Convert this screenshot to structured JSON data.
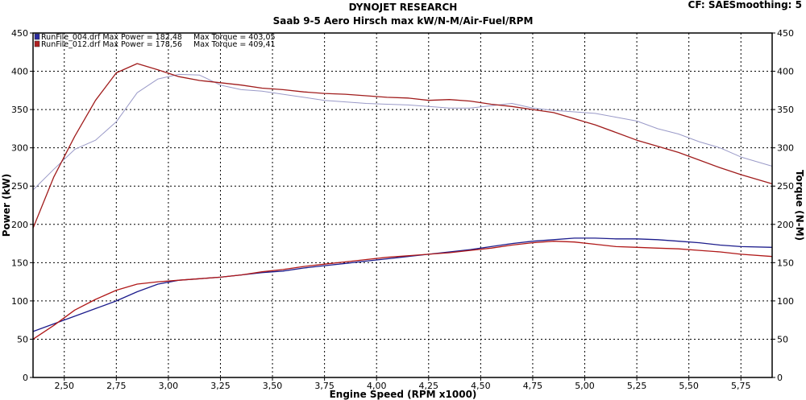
{
  "header": {
    "title": "DYNOJET RESEARCH",
    "subtitle": "Saab 9-5 Aero Hirsch max kW/N-M/Air-Fuel/RPM",
    "correction": "CF: SAE",
    "smoothing": "Smoothing: 5"
  },
  "chart_data": {
    "type": "line",
    "xlabel": "Engine Speed (RPM x1000)",
    "ylabel_left": "Power (kW)",
    "ylabel_right": "Torque (N-M)",
    "xlim": [
      2.35,
      5.9
    ],
    "ylim": [
      0,
      450
    ],
    "x_ticks": [
      "2,50",
      "2,75",
      "3,00",
      "3,25",
      "3,50",
      "3,75",
      "4,00",
      "4,25",
      "4,50",
      "4,75",
      "5,00",
      "5,25",
      "5,50",
      "5,75"
    ],
    "x_tick_values": [
      2.5,
      2.75,
      3.0,
      3.25,
      3.5,
      3.75,
      4.0,
      4.25,
      4.5,
      4.75,
      5.0,
      5.25,
      5.5,
      5.75
    ],
    "left_ticks": [
      "0",
      "50",
      "100",
      "150",
      "200",
      "250",
      "300",
      "350",
      "400",
      "450"
    ],
    "right_ticks": [
      "0",
      "50",
      "100",
      "150",
      "200",
      "250",
      "300",
      "350",
      "400",
      "450"
    ],
    "tick_values": [
      0,
      50,
      100,
      150,
      200,
      250,
      300,
      350,
      400,
      450
    ],
    "grid": true,
    "legend": [
      {
        "label": "RunFile_004.drf Max Power = 182,48",
        "detail": "Max Torque = 403,05",
        "color": "#2a2aa0"
      },
      {
        "label": "RunFile_012.drf Max Power = 178,56",
        "detail": "Max Torque = 409,41",
        "color": "#b02020"
      }
    ],
    "series": [
      {
        "name": "RunFile_004.drf",
        "kind": "power",
        "color": "#1c1c8c",
        "x": [
          2.35,
          2.45,
          2.55,
          2.65,
          2.75,
          2.85,
          2.95,
          3.05,
          3.15,
          3.25,
          3.35,
          3.45,
          3.55,
          3.65,
          3.75,
          3.85,
          3.95,
          4.05,
          4.15,
          4.25,
          4.35,
          4.45,
          4.55,
          4.65,
          4.75,
          4.85,
          4.95,
          5.05,
          5.15,
          5.25,
          5.35,
          5.45,
          5.55,
          5.65,
          5.75,
          5.9
        ],
        "y": [
          60,
          70,
          80,
          90,
          100,
          112,
          122,
          127,
          129,
          131,
          134,
          137,
          139,
          143,
          146,
          149,
          152,
          155,
          158,
          161,
          164,
          167,
          171,
          175,
          178,
          180,
          182,
          182,
          181,
          181,
          180,
          178,
          176,
          173,
          171,
          170
        ]
      },
      {
        "name": "RunFile_012.drf",
        "kind": "power",
        "color": "#b01818",
        "x": [
          2.35,
          2.45,
          2.55,
          2.65,
          2.75,
          2.85,
          2.95,
          3.05,
          3.15,
          3.25,
          3.35,
          3.45,
          3.55,
          3.65,
          3.75,
          3.85,
          3.95,
          4.05,
          4.15,
          4.25,
          4.35,
          4.45,
          4.55,
          4.65,
          4.75,
          4.85,
          4.95,
          5.05,
          5.15,
          5.25,
          5.35,
          5.45,
          5.55,
          5.65,
          5.75,
          5.9
        ],
        "y": [
          50,
          68,
          88,
          102,
          114,
          122,
          125,
          127,
          129,
          131,
          134,
          138,
          141,
          145,
          148,
          151,
          154,
          157,
          159,
          161,
          163,
          166,
          169,
          173,
          176,
          178,
          177,
          174,
          171,
          170,
          169,
          168,
          166,
          164,
          161,
          158
        ]
      },
      {
        "name": "RunFile_004.drf",
        "kind": "torque",
        "color": "#9a9ac8",
        "x": [
          2.35,
          2.45,
          2.55,
          2.65,
          2.75,
          2.85,
          2.95,
          3.05,
          3.15,
          3.25,
          3.35,
          3.45,
          3.55,
          3.65,
          3.75,
          3.85,
          3.95,
          4.05,
          4.15,
          4.25,
          4.35,
          4.45,
          4.55,
          4.65,
          4.75,
          4.85,
          4.95,
          5.05,
          5.15,
          5.25,
          5.35,
          5.45,
          5.55,
          5.65,
          5.75,
          5.9
        ],
        "y": [
          245,
          272,
          298,
          310,
          334,
          372,
          390,
          396,
          395,
          382,
          376,
          374,
          370,
          366,
          362,
          360,
          358,
          357,
          356,
          354,
          352,
          352,
          355,
          358,
          352,
          349,
          347,
          345,
          340,
          335,
          325,
          318,
          308,
          300,
          288,
          276
        ]
      },
      {
        "name": "RunFile_012.drf",
        "kind": "torque",
        "color": "#a01c1c",
        "x": [
          2.35,
          2.45,
          2.55,
          2.65,
          2.75,
          2.85,
          2.95,
          3.05,
          3.15,
          3.25,
          3.35,
          3.45,
          3.55,
          3.65,
          3.75,
          3.85,
          3.95,
          4.05,
          4.15,
          4.25,
          4.35,
          4.45,
          4.55,
          4.65,
          4.75,
          4.85,
          4.95,
          5.05,
          5.15,
          5.25,
          5.35,
          5.45,
          5.55,
          5.65,
          5.75,
          5.9
        ],
        "y": [
          195,
          262,
          315,
          362,
          398,
          410,
          402,
          393,
          388,
          385,
          382,
          378,
          376,
          373,
          371,
          370,
          368,
          366,
          365,
          362,
          363,
          361,
          357,
          354,
          350,
          346,
          338,
          330,
          320,
          310,
          302,
          294,
          284,
          274,
          265,
          253
        ]
      }
    ]
  }
}
